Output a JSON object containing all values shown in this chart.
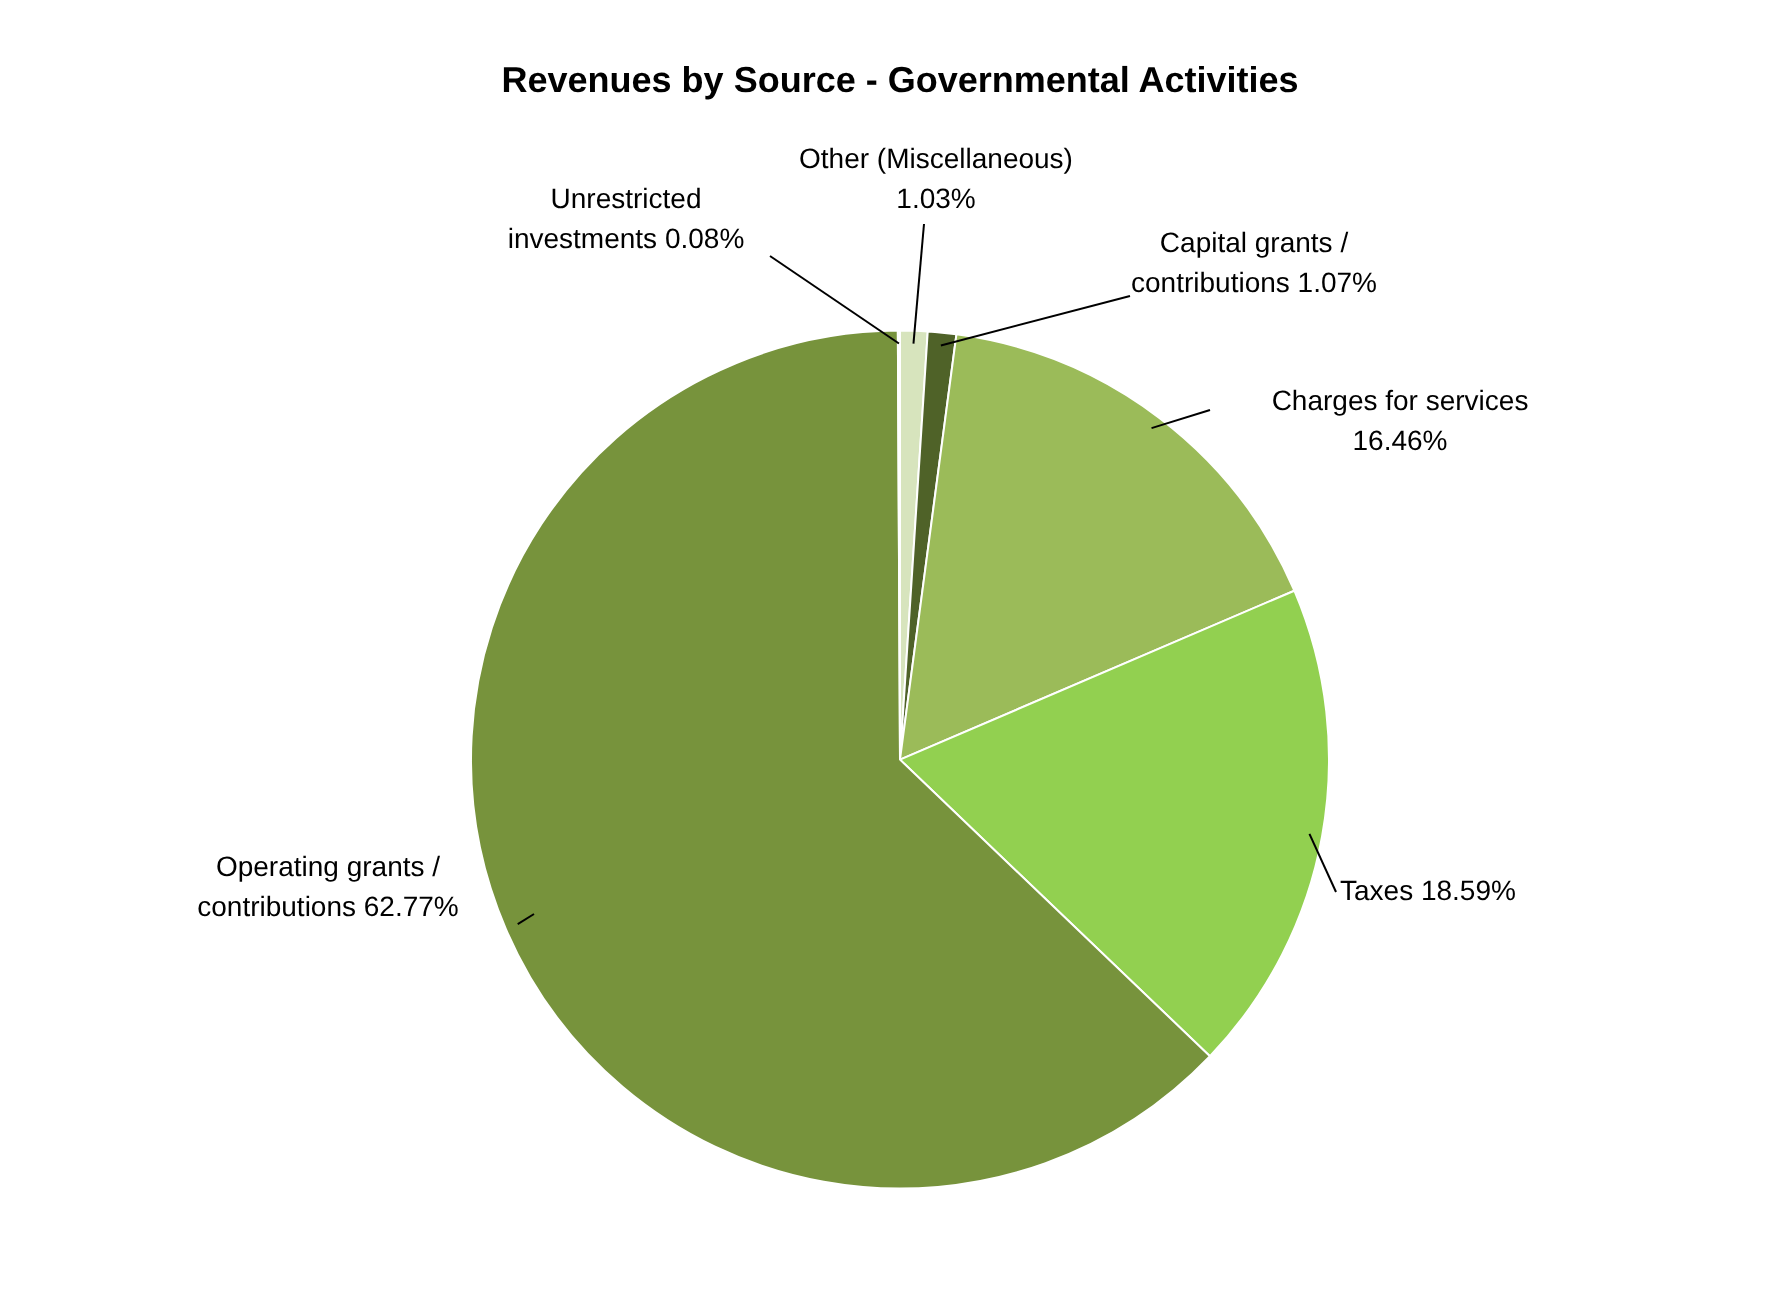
{
  "chart_data": {
    "type": "pie",
    "title": "Revenues by Source - Governmental Activities",
    "categories": [
      "Other (Miscellaneous)",
      "Capital grants / contributions",
      "Charges for services",
      "Taxes",
      "Operating grants / contributions",
      "Unrestricted investments"
    ],
    "values": [
      1.03,
      1.07,
      16.46,
      18.59,
      62.77,
      0.08
    ],
    "colors": [
      "#d7e4bd",
      "#4f6228",
      "#9bbb59",
      "#92d050",
      "#77933c",
      "#ebf1de"
    ],
    "value_labels": [
      "1.03%",
      "1.07%",
      "16.46%",
      "18.59%",
      "62.77%",
      "0.08%"
    ],
    "legend": false
  }
}
